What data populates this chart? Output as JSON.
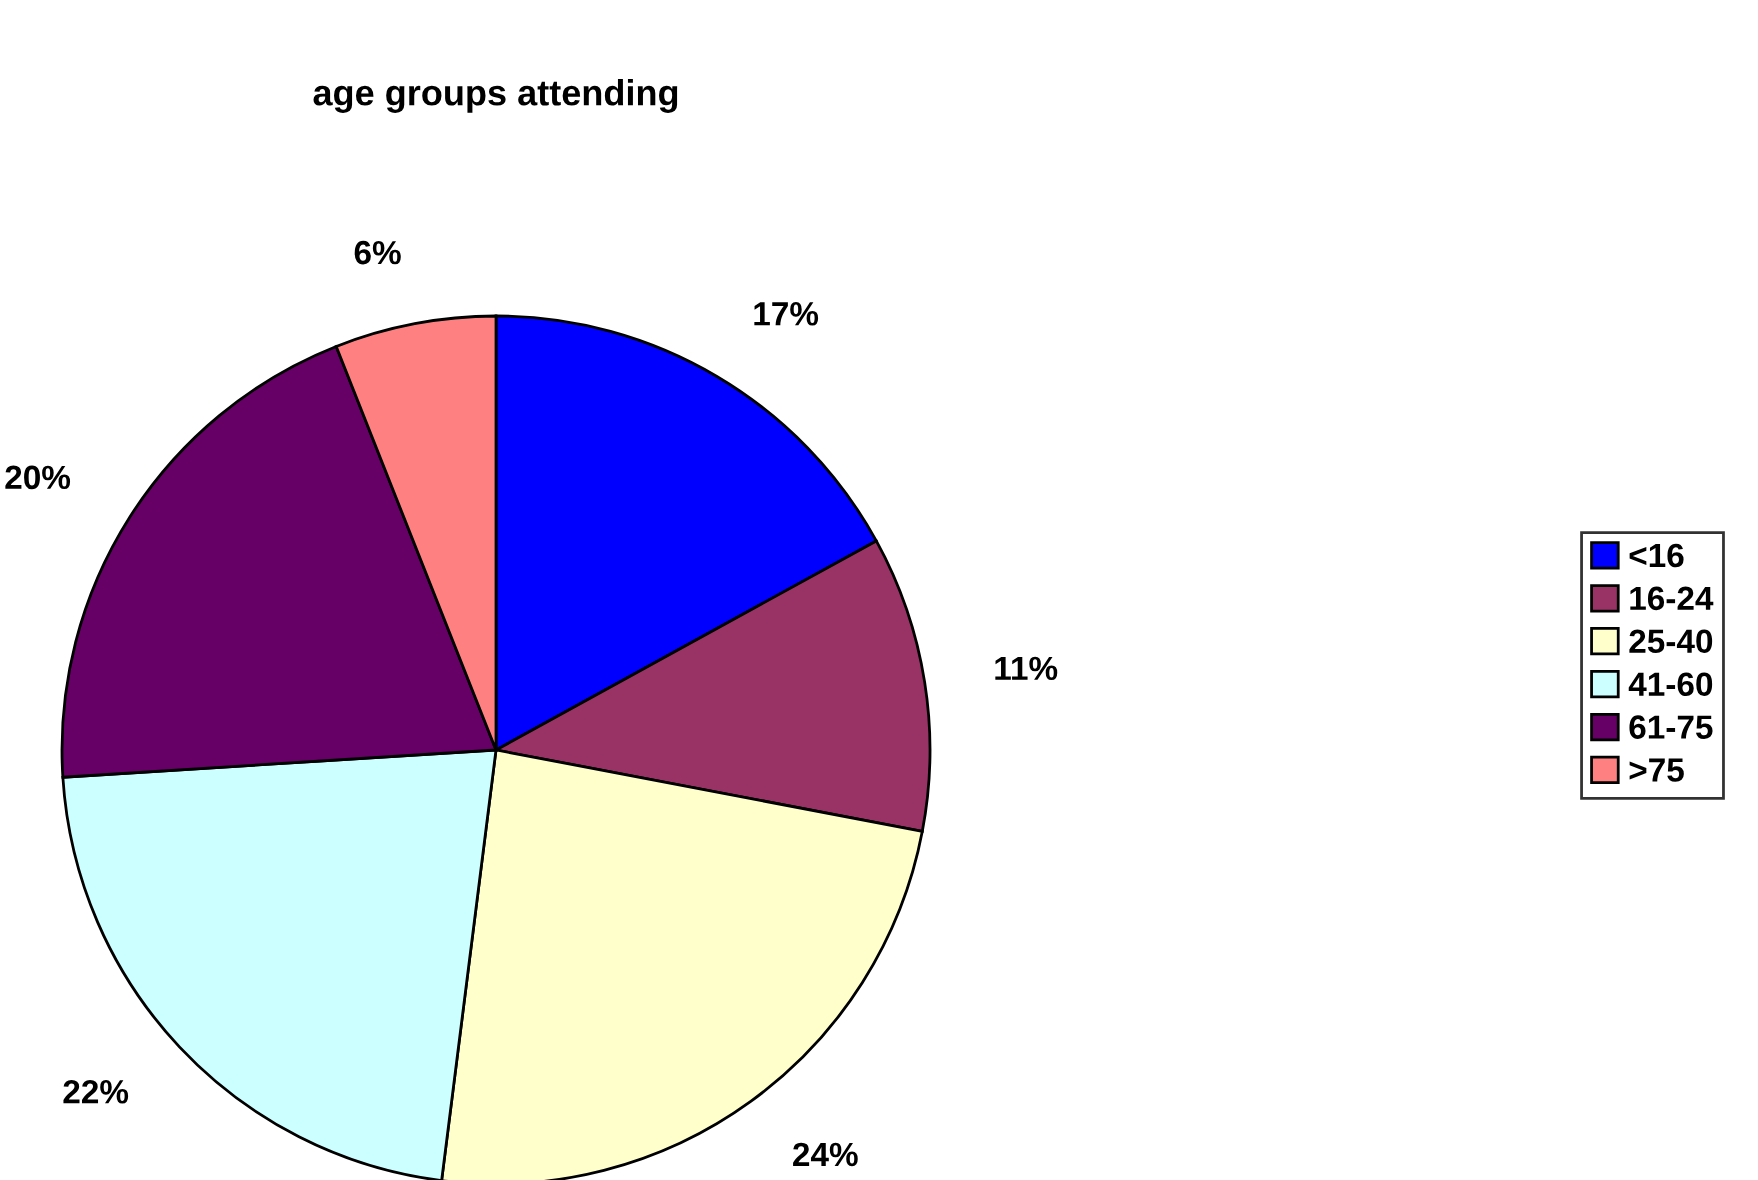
{
  "chart_data": {
    "type": "pie",
    "title": "age groups attending",
    "categories": [
      "<16",
      "16-24",
      "25-40",
      "41-60",
      "61-75",
      ">75"
    ],
    "values": [
      17,
      11,
      24,
      22,
      20,
      6
    ],
    "colors": [
      "#0000ff",
      "#993366",
      "#ffffcc",
      "#ccffff",
      "#660066",
      "#ff8080"
    ],
    "value_labels": [
      "17%",
      "11%",
      "24%",
      "22%",
      "20%",
      "6%"
    ],
    "legend": "right"
  }
}
